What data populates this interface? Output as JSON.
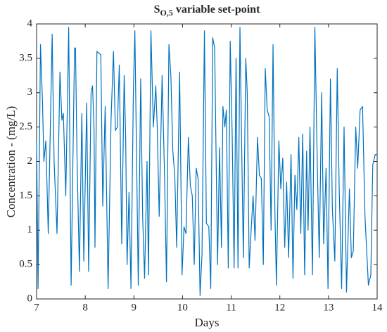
{
  "chart_data": {
    "type": "line",
    "title_parts": [
      "S",
      "O,5",
      " variable set-point"
    ],
    "xlabel": "Days",
    "ylabel": "Concentration - (mg/L)",
    "xlim": [
      7,
      14
    ],
    "xticks": [
      7,
      8,
      9,
      10,
      11,
      12,
      13,
      14
    ],
    "ylim": [
      0,
      4
    ],
    "yticks": [
      0,
      0.5,
      1,
      1.5,
      2,
      2.5,
      3,
      3.5,
      4
    ],
    "grid": false,
    "x": [
      7.0,
      7.03,
      7.08,
      7.12,
      7.15,
      7.19,
      7.24,
      7.32,
      7.36,
      7.42,
      7.48,
      7.52,
      7.55,
      7.6,
      7.66,
      7.71,
      7.78,
      7.8,
      7.83,
      7.88,
      7.93,
      7.97,
      8.03,
      8.07,
      8.12,
      8.15,
      8.18,
      8.2,
      8.24,
      8.32,
      8.36,
      8.41,
      8.47,
      8.53,
      8.58,
      8.62,
      8.66,
      8.7,
      8.75,
      8.8,
      8.83,
      8.86,
      8.9,
      8.94,
      8.99,
      9.02,
      9.06,
      9.09,
      9.14,
      9.18,
      9.22,
      9.27,
      9.3,
      9.35,
      9.4,
      9.45,
      9.48,
      9.52,
      9.58,
      9.63,
      9.67,
      9.72,
      9.76,
      9.8,
      9.84,
      9.88,
      9.94,
      9.99,
      10.03,
      10.07,
      10.12,
      10.16,
      10.2,
      10.24,
      10.28,
      10.32,
      10.36,
      10.4,
      10.45,
      10.49,
      10.54,
      10.58,
      10.62,
      10.66,
      10.72,
      10.76,
      10.8,
      10.83,
      10.87,
      10.9,
      10.94,
      10.98,
      11.02,
      11.06,
      11.1,
      11.14,
      11.18,
      11.22,
      11.25,
      11.3,
      11.33,
      11.37,
      11.41,
      11.45,
      11.49,
      11.54,
      11.58,
      11.62,
      11.66,
      11.7,
      11.74,
      11.78,
      11.82,
      11.86,
      11.9,
      11.93,
      11.98,
      12.02,
      12.06,
      12.1,
      12.14,
      12.18,
      12.23,
      12.27,
      12.31,
      12.35,
      12.39,
      12.43,
      12.47,
      12.51,
      12.55,
      12.58,
      12.62,
      12.67,
      12.72,
      12.77,
      12.81,
      12.86,
      12.9,
      12.95,
      12.99,
      13.04,
      13.08,
      13.13,
      13.18,
      13.22,
      13.27,
      13.32,
      13.37,
      13.43,
      13.47,
      13.51,
      13.56,
      13.6,
      13.65,
      13.7,
      13.75,
      13.82,
      13.87,
      13.91,
      13.96,
      14.0
    ],
    "series": [
      {
        "color": "#0072bd",
        "values": [
          2.3,
          0.15,
          3.7,
          2.9,
          2.0,
          2.3,
          0.95,
          3.85,
          2.0,
          0.95,
          3.3,
          2.6,
          2.7,
          1.5,
          3.95,
          0.2,
          3.65,
          3.65,
          2.1,
          0.4,
          2.7,
          0.55,
          2.85,
          0.4,
          3.0,
          3.1,
          2.5,
          0.75,
          3.6,
          3.55,
          1.35,
          2.8,
          0.15,
          2.6,
          3.6,
          2.45,
          2.5,
          3.4,
          0.8,
          3.25,
          2.4,
          0.5,
          1.55,
          0.15,
          3.05,
          3.9,
          1.8,
          0.2,
          3.2,
          1.2,
          0.3,
          2.0,
          0.35,
          3.9,
          2.5,
          3.1,
          2.5,
          1.2,
          3.25,
          1.8,
          0.25,
          3.7,
          3.25,
          2.15,
          1.8,
          0.75,
          3.3,
          0.35,
          1.05,
          0.95,
          2.35,
          1.65,
          1.5,
          0.5,
          1.9,
          1.75,
          0.05,
          0.65,
          3.9,
          1.1,
          1.05,
          0.15,
          3.8,
          3.65,
          0.5,
          2.2,
          0.75,
          2.8,
          2.5,
          2.75,
          0.45,
          3.75,
          2.4,
          0.45,
          3.5,
          0.45,
          3.95,
          2.0,
          0.6,
          3.5,
          3.0,
          0.45,
          1.0,
          1.5,
          0.85,
          2.35,
          1.8,
          1.75,
          0.5,
          3.35,
          2.75,
          2.65,
          1.0,
          3.7,
          1.2,
          0.2,
          2.3,
          1.6,
          2.05,
          0.75,
          1.7,
          0.6,
          2.1,
          0.3,
          1.8,
          1.3,
          2.35,
          0.95,
          2.4,
          0.35,
          2.15,
          1.0,
          2.5,
          0.35,
          3.95,
          1.95,
          0.6,
          3.0,
          0.8,
          1.9,
          0.15,
          3.2,
          1.3,
          0.55,
          3.35,
          1.6,
          0.15,
          2.5,
          0.1,
          1.6,
          0.6,
          0.7,
          2.5,
          1.9,
          2.75,
          2.8,
          1.2,
          0.2,
          0.35,
          1.95,
          2.1,
          2.1
        ]
      }
    ]
  }
}
